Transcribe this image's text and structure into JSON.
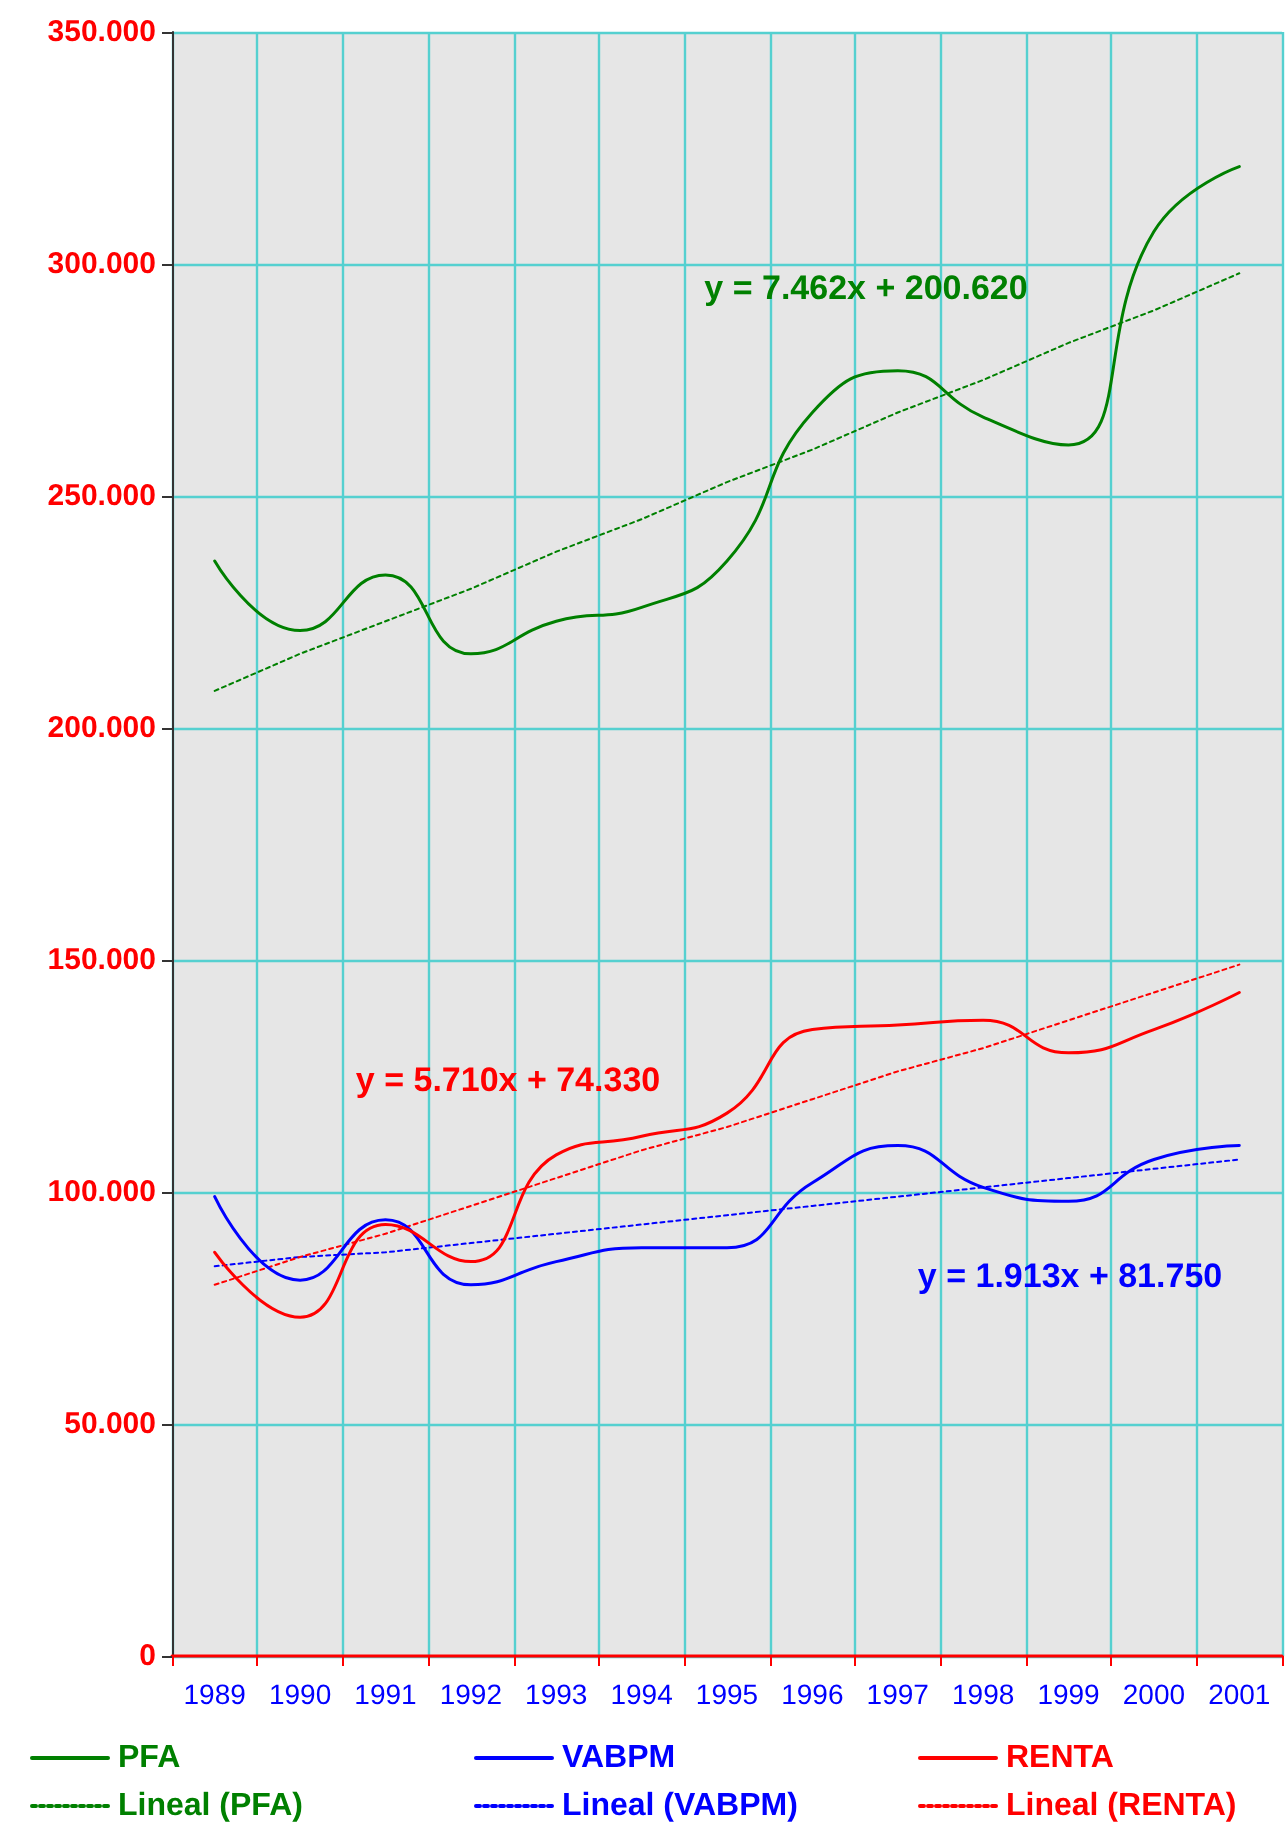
{
  "chart_data": {
    "type": "line",
    "categories": [
      "1989",
      "1990",
      "1991",
      "1992",
      "1993",
      "1994",
      "1995",
      "1996",
      "1997",
      "1998",
      "1999",
      "2000",
      "2001"
    ],
    "series": [
      {
        "name": "PFA",
        "color": "#008000",
        "values": [
          236000,
          221000,
          233000,
          216000,
          223000,
          226000,
          236000,
          268000,
          277000,
          267000,
          261000,
          307000,
          321000
        ]
      },
      {
        "name": "VABPM",
        "color": "#0000ff",
        "values": [
          99000,
          81000,
          94000,
          80000,
          85000,
          88000,
          88000,
          102000,
          110000,
          101000,
          98000,
          107000,
          110000
        ]
      },
      {
        "name": "RENTA",
        "color": "#ff0000",
        "values": [
          87000,
          73000,
          93000,
          85000,
          108000,
          112000,
          117000,
          135000,
          136000,
          137000,
          130000,
          135000,
          143000
        ]
      },
      {
        "name": "Lineal (PFA)",
        "color": "#008000",
        "line_style": "dotted",
        "values": [
          208000,
          216000,
          223000,
          230000,
          238000,
          245000,
          253000,
          260000,
          268000,
          275000,
          283000,
          290000,
          298000
        ]
      },
      {
        "name": "Lineal (VABPM)",
        "color": "#0000ff",
        "line_style": "dotted",
        "values": [
          84000,
          86000,
          87000,
          89000,
          91000,
          93000,
          95000,
          97000,
          99000,
          101000,
          103000,
          105000,
          107000
        ]
      },
      {
        "name": "Lineal (RENTA)",
        "color": "#ff0000",
        "line_style": "dotted",
        "values": [
          80000,
          86000,
          91000,
          97000,
          103000,
          109000,
          114000,
          120000,
          126000,
          131000,
          137000,
          143000,
          149000
        ]
      }
    ],
    "ylim": [
      0,
      350000
    ],
    "yticks": [
      0,
      {
        "value": 50000,
        "label": "50.000"
      },
      {
        "value": 100000,
        "label": "100.000"
      },
      {
        "value": 150000,
        "label": "150.000"
      },
      {
        "value": 200000,
        "label": "200.000"
      },
      {
        "value": 250000,
        "label": "250.000"
      },
      {
        "value": 300000,
        "label": "300.000"
      },
      {
        "value": 350000,
        "label": "350.000"
      }
    ],
    "annotations": [
      "y = 7.462x + 200.620",
      "y = 1.913x + 81.750",
      "y = 5.710x + 74.330"
    ],
    "grid": true,
    "legend": "bottom",
    "marker": "none",
    "line_style": "solid"
  }
}
